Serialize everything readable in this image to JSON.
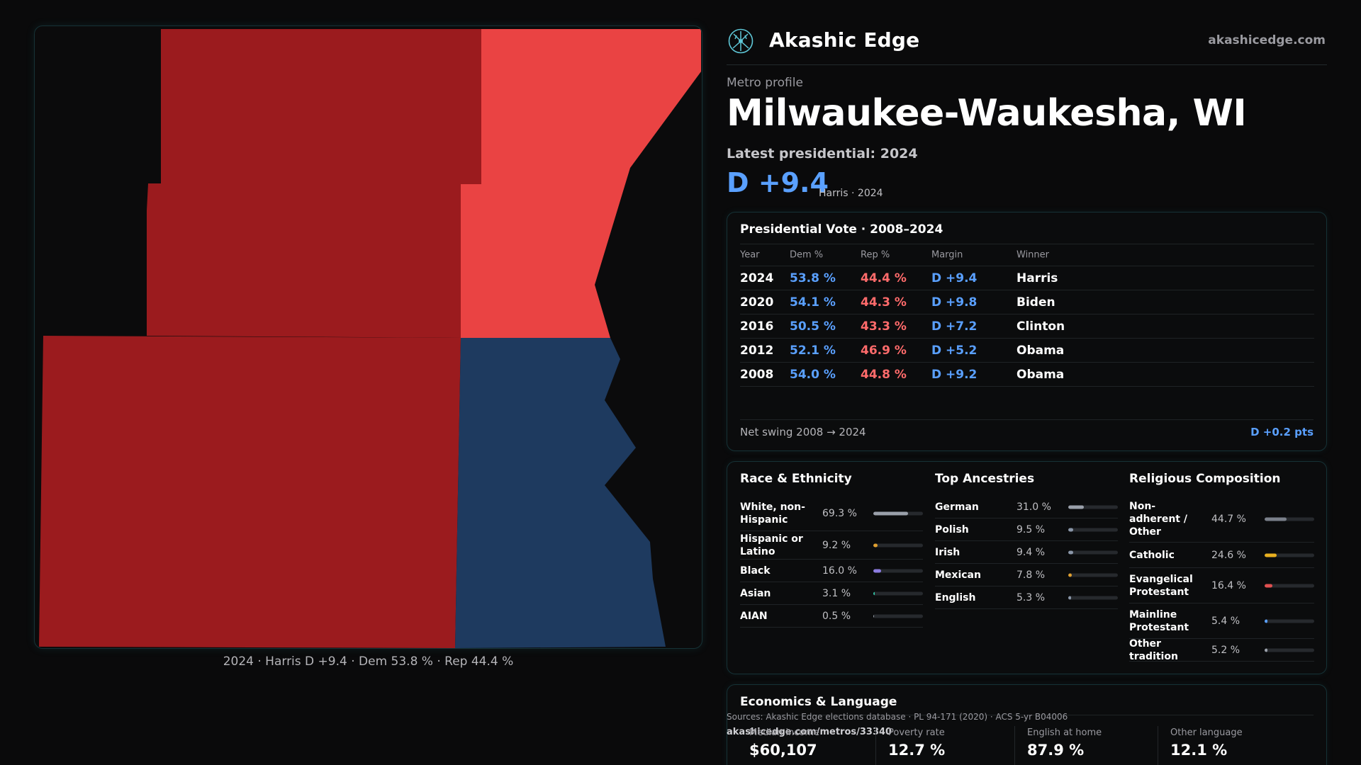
{
  "map": {
    "caption": "2024 · Harris D +9.4 · Dem 53.8 % · Rep 44.4 %",
    "colors": {
      "rep_dark": "#9b1b1e",
      "rep_light": "#ea4343",
      "dem": "#1e3a5f"
    }
  },
  "brand": {
    "name": "Akashic Edge",
    "url": "akashicedge.com",
    "logo_icon": "tree-network-icon"
  },
  "header": {
    "eyebrow": "Metro profile",
    "title": "Milwaukee-Waukesha, WI",
    "latest": "Latest presidential: 2024",
    "margin": "D +9.4",
    "margin_sub": "Harris · 2024"
  },
  "vote": {
    "title": "Presidential Vote · 2008–2024",
    "columns": [
      "Year",
      "Dem %",
      "Rep %",
      "Margin",
      "Winner"
    ],
    "rows": [
      {
        "year": "2024",
        "dem": "53.8 %",
        "rep": "44.4 %",
        "margin": "D +9.4",
        "winner": "Harris"
      },
      {
        "year": "2020",
        "dem": "54.1 %",
        "rep": "44.3 %",
        "margin": "D +9.8",
        "winner": "Biden"
      },
      {
        "year": "2016",
        "dem": "50.5 %",
        "rep": "43.3 %",
        "margin": "D +7.2",
        "winner": "Clinton"
      },
      {
        "year": "2012",
        "dem": "52.1 %",
        "rep": "46.9 %",
        "margin": "D +5.2",
        "winner": "Obama"
      },
      {
        "year": "2008",
        "dem": "54.0 %",
        "rep": "44.8 %",
        "margin": "D +9.2",
        "winner": "Obama"
      }
    ],
    "swing_label": "Net swing 2008 → 2024",
    "swing_value": "D +0.2 pts"
  },
  "race": {
    "title": "Race & Ethnicity",
    "items": [
      {
        "label": "White, non-Hispanic",
        "pct": "69.3 %",
        "value": 69.3,
        "color": "#9aa0aa"
      },
      {
        "label": "Hispanic or Latino",
        "pct": "9.2 %",
        "value": 9.2,
        "color": "#e0a030"
      },
      {
        "label": "Black",
        "pct": "16.0 %",
        "value": 16.0,
        "color": "#8c7ce0"
      },
      {
        "label": "Asian",
        "pct": "3.1 %",
        "value": 3.1,
        "color": "#30c0a0"
      },
      {
        "label": "AIAN",
        "pct": "0.5 %",
        "value": 0.5,
        "color": "#9aa0aa"
      }
    ]
  },
  "ancestry": {
    "title": "Top Ancestries",
    "items": [
      {
        "label": "German",
        "pct": "31.0 %",
        "value": 31.0,
        "color": "#9aa0aa"
      },
      {
        "label": "Polish",
        "pct": "9.5 %",
        "value": 9.5,
        "color": "#8a96a8"
      },
      {
        "label": "Irish",
        "pct": "9.4 %",
        "value": 9.4,
        "color": "#8a96a8"
      },
      {
        "label": "Mexican",
        "pct": "7.8 %",
        "value": 7.8,
        "color": "#e0a030"
      },
      {
        "label": "English",
        "pct": "5.3 %",
        "value": 5.3,
        "color": "#8a96a8"
      }
    ]
  },
  "religion": {
    "title": "Religious Composition",
    "items": [
      {
        "label": "Non-adherent / Other",
        "pct": "44.7 %",
        "value": 44.7,
        "color": "#7a808a"
      },
      {
        "label": "Catholic",
        "pct": "24.6 %",
        "value": 24.6,
        "color": "#e8b020"
      },
      {
        "label": "Evangelical Protestant",
        "pct": "16.4 %",
        "value": 16.4,
        "color": "#e05050"
      },
      {
        "label": "Mainline Protestant",
        "pct": "5.4 %",
        "value": 5.4,
        "color": "#5aa0ff"
      },
      {
        "label": "Other tradition",
        "pct": "5.2 %",
        "value": 5.2,
        "color": "#9aa0aa"
      }
    ]
  },
  "economics": {
    "title": "Economics & Language",
    "sources": "Sources: Akashic Edge elections database · PL 94-171 (2020) · ACS 5-yr B04006",
    "source_url": "akashicedge.com/metros/33340",
    "items": [
      {
        "label": "Median income",
        "value": "$60,107"
      },
      {
        "label": "Poverty rate",
        "value": "12.7 %"
      },
      {
        "label": "English at home",
        "value": "87.9 %"
      },
      {
        "label": "Other language",
        "value": "12.1 %"
      }
    ]
  }
}
